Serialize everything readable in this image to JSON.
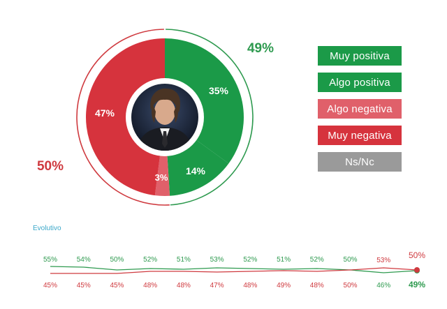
{
  "colors": {
    "muy_positiva": "#1b9a48",
    "algo_positiva": "#1b9a48",
    "algo_negativa": "#e0606a",
    "muy_negativa": "#d6333d",
    "ns_nc": "#9a9a9a",
    "positive_text": "#2e9a4f",
    "negative_text": "#cf3a3f",
    "evolutivo_title": "#3aa7c9"
  },
  "legend": [
    {
      "label": "Muy positiva",
      "color": "#1b9a48"
    },
    {
      "label": "Algo positiva",
      "color": "#1b9a48"
    },
    {
      "label": "Algo negativa",
      "color": "#e0606a"
    },
    {
      "label": "Muy negativa",
      "color": "#d6333d"
    },
    {
      "label": "Ns/Nc",
      "color": "#9a9a9a"
    }
  ],
  "evolutivo": {
    "title": "Evolutivo"
  },
  "chart_data": [
    {
      "type": "pie",
      "subtype": "donut",
      "slices": [
        {
          "label": "Muy positiva",
          "value": 35,
          "display": "35%"
        },
        {
          "label": "Algo positiva",
          "value": 14,
          "display": "14%"
        },
        {
          "label": "Algo negativa",
          "value": 3,
          "display": "3%"
        },
        {
          "label": "Muy negativa",
          "value": 47,
          "display": "47%"
        }
      ],
      "totals": {
        "positive": {
          "value": 49,
          "display": "49%"
        },
        "negative": {
          "value": 50,
          "display": "50%"
        }
      },
      "center_image": "photo-of-person"
    },
    {
      "type": "line",
      "title": "Evolutivo",
      "series": [
        {
          "color": "#2e9a4f",
          "values": [
            55,
            54,
            50,
            52,
            51,
            53,
            52,
            51,
            52,
            50,
            46,
            49
          ],
          "labels": [
            "55%",
            "54%",
            "50%",
            "52%",
            "51%",
            "53%",
            "52%",
            "51%",
            "52%",
            "50%",
            "46%",
            "49%"
          ]
        },
        {
          "color": "#cf3a3f",
          "values": [
            45,
            45,
            45,
            48,
            48,
            47,
            48,
            49,
            48,
            50,
            53,
            50
          ],
          "labels": [
            "45%",
            "45%",
            "45%",
            "48%",
            "48%",
            "47%",
            "48%",
            "49%",
            "48%",
            "50%",
            "53%",
            "50%"
          ]
        }
      ]
    }
  ]
}
